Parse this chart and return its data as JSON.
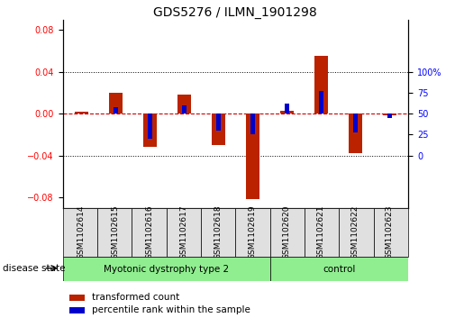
{
  "title": "GDS5276 / ILMN_1901298",
  "samples": [
    "GSM1102614",
    "GSM1102615",
    "GSM1102616",
    "GSM1102617",
    "GSM1102618",
    "GSM1102619",
    "GSM1102620",
    "GSM1102621",
    "GSM1102622",
    "GSM1102623"
  ],
  "red_values": [
    0.002,
    0.02,
    -0.032,
    0.018,
    -0.03,
    -0.082,
    0.003,
    0.055,
    -0.038,
    -0.002
  ],
  "blue_values_pct": [
    50,
    58,
    20,
    60,
    30,
    25,
    62,
    77,
    27,
    45
  ],
  "groups": [
    {
      "label": "Myotonic dystrophy type 2",
      "start": 0,
      "end": 6,
      "color": "#90ee90"
    },
    {
      "label": "control",
      "start": 6,
      "end": 10,
      "color": "#90ee90"
    }
  ],
  "ylim_left": [
    -0.09,
    0.09
  ],
  "left_yticks": [
    -0.08,
    -0.04,
    0.0,
    0.04,
    0.08
  ],
  "right_yticks": [
    0,
    25,
    50,
    75,
    100
  ],
  "red_color": "#bb2200",
  "blue_color": "#0000cc",
  "zero_line_color": "#cc0000",
  "grid_color": "#000000",
  "label_red": "transformed count",
  "label_blue": "percentile rank within the sample",
  "disease_state_label": "disease state",
  "group_separator": 6,
  "sample_box_color": "#e0e0e0",
  "bar_width": 0.4,
  "blue_bar_width": 0.12,
  "xlim": [
    -0.55,
    9.55
  ]
}
